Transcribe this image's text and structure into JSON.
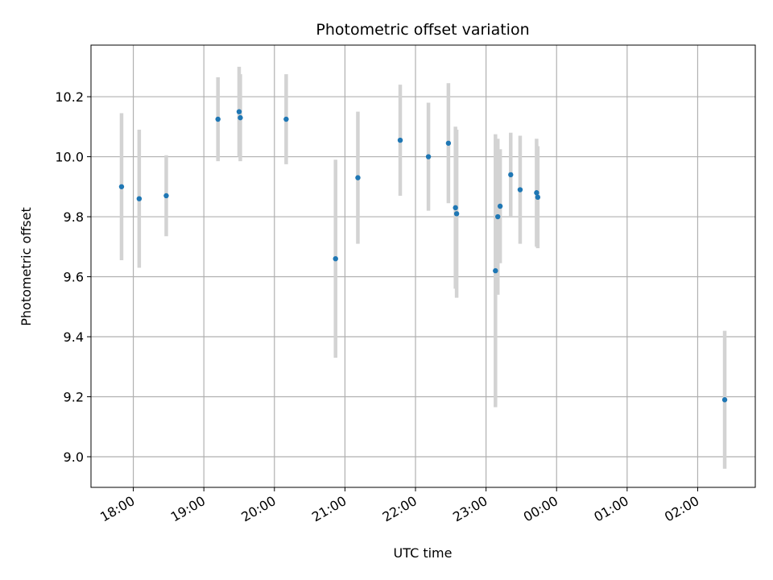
{
  "chart_data": {
    "type": "scatter",
    "title": "Photometric offset variation",
    "xlabel": "UTC time",
    "ylabel": "Photometric offset",
    "grid": true,
    "xlim": [
      "17:24",
      "02:49"
    ],
    "ylim": [
      8.898,
      10.372
    ],
    "yticks": [
      9.0,
      9.2,
      9.4,
      9.6,
      9.8,
      10.0,
      10.2
    ],
    "ytick_labels": [
      "9.0",
      "9.2",
      "9.4",
      "9.6",
      "9.8",
      "10.0",
      "10.2"
    ],
    "xticks": [
      "18:00",
      "19:00",
      "20:00",
      "21:00",
      "22:00",
      "23:00",
      "00:00",
      "01:00",
      "02:00"
    ],
    "marker_color": "#1f77b4",
    "errorbar_color": "#d3d3d3",
    "points": [
      {
        "t": "17:50",
        "y": 9.9,
        "err": 0.245
      },
      {
        "t": "18:05",
        "y": 9.86,
        "err": 0.23
      },
      {
        "t": "18:28",
        "y": 9.87,
        "err": 0.135
      },
      {
        "t": "19:12",
        "y": 10.125,
        "err": 0.14
      },
      {
        "t": "19:30",
        "y": 10.15,
        "err": 0.15
      },
      {
        "t": "19:31",
        "y": 10.13,
        "err": 0.145
      },
      {
        "t": "20:10",
        "y": 10.125,
        "err": 0.15
      },
      {
        "t": "20:52",
        "y": 9.66,
        "err": 0.33
      },
      {
        "t": "21:11",
        "y": 9.93,
        "err": 0.22
      },
      {
        "t": "21:47",
        "y": 10.055,
        "err": 0.185
      },
      {
        "t": "22:11",
        "y": 10.0,
        "err": 0.18
      },
      {
        "t": "22:28",
        "y": 10.045,
        "err": 0.2
      },
      {
        "t": "22:34",
        "y": 9.83,
        "err": 0.27
      },
      {
        "t": "22:35",
        "y": 9.81,
        "err": 0.28
      },
      {
        "t": "23:08",
        "y": 9.62,
        "err": 0.455
      },
      {
        "t": "23:10",
        "y": 9.8,
        "err": 0.26
      },
      {
        "t": "23:12",
        "y": 9.835,
        "err": 0.19
      },
      {
        "t": "23:21",
        "y": 9.94,
        "err": 0.14
      },
      {
        "t": "23:29",
        "y": 9.89,
        "err": 0.18
      },
      {
        "t": "23:43",
        "y": 9.88,
        "err": 0.18
      },
      {
        "t": "23:44",
        "y": 9.865,
        "err": 0.17
      },
      {
        "t": "02:23",
        "y": 9.19,
        "err": 0.23
      }
    ]
  }
}
